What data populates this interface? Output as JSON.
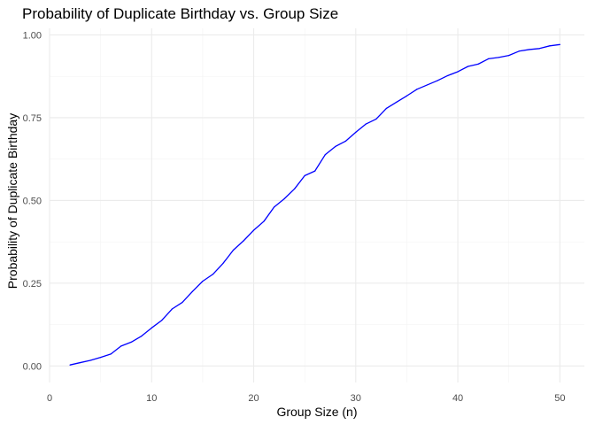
{
  "chart_data": {
    "type": "line",
    "title": "Probability of Duplicate Birthday vs. Group Size",
    "xlabel": "Group Size (n)",
    "ylabel": "Probability of Duplicate Birthday",
    "xlim": [
      0,
      52.4
    ],
    "ylim": [
      -0.05,
      1.02
    ],
    "x_ticks": [
      0,
      10,
      20,
      30,
      40,
      50
    ],
    "x_tick_labels": [
      "0",
      "10",
      "20",
      "30",
      "40",
      "50"
    ],
    "y_ticks": [
      0,
      0.25,
      0.5,
      0.75,
      1.0
    ],
    "y_tick_labels": [
      "0.00",
      "0.25",
      "0.50",
      "0.75",
      "1.00"
    ],
    "grid": true,
    "line_color": "#0000ff",
    "series": [
      {
        "x": [
          2,
          3,
          4,
          5,
          6,
          7,
          8,
          9,
          10,
          11,
          12,
          13,
          14,
          15,
          16,
          17,
          18,
          19,
          20,
          21,
          22,
          23,
          24,
          25,
          26,
          27,
          28,
          29,
          30,
          31,
          32,
          33,
          34,
          35,
          36,
          37,
          38,
          39,
          40,
          41,
          42,
          43,
          44,
          45,
          46,
          47,
          48,
          49,
          50
        ],
        "values": [
          0.003,
          0.01,
          0.017,
          0.026,
          0.036,
          0.06,
          0.072,
          0.09,
          0.115,
          0.138,
          0.172,
          0.192,
          0.225,
          0.256,
          0.277,
          0.31,
          0.35,
          0.378,
          0.41,
          0.437,
          0.48,
          0.505,
          0.535,
          0.575,
          0.589,
          0.638,
          0.663,
          0.679,
          0.706,
          0.731,
          0.746,
          0.778,
          0.797,
          0.816,
          0.836,
          0.849,
          0.862,
          0.877,
          0.889,
          0.905,
          0.912,
          0.928,
          0.932,
          0.938,
          0.951,
          0.956,
          0.959,
          0.967,
          0.971
        ]
      }
    ]
  }
}
